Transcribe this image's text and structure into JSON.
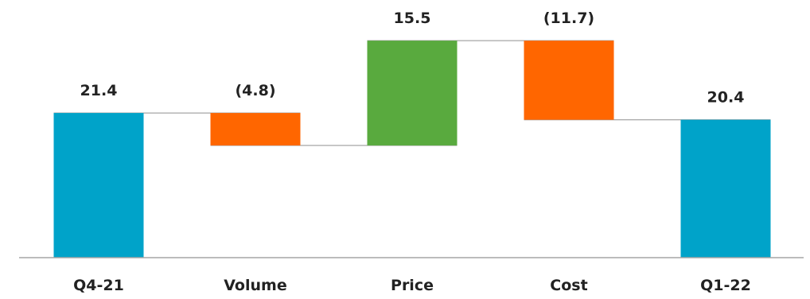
{
  "chart_data": {
    "type": "waterfall",
    "categories": [
      "Q4-21",
      "Volume",
      "Price",
      "Cost",
      "Q1-22"
    ],
    "values": [
      21.4,
      -4.8,
      15.5,
      -11.7,
      20.4
    ],
    "kinds": [
      "total",
      "delta",
      "delta",
      "delta",
      "total"
    ],
    "data_labels": [
      "21.4",
      "(4.8)",
      "15.5",
      "(11.7)",
      "20.4"
    ],
    "title": "",
    "xlabel": "",
    "ylabel": "",
    "grid": false,
    "legend": "none"
  },
  "colors": {
    "total": "#00A3C9",
    "increase": "#59AA3E",
    "decrease": "#FF6600",
    "connector": "#A6A6A6",
    "axis": "#A6A6A6",
    "text": "#222222"
  }
}
